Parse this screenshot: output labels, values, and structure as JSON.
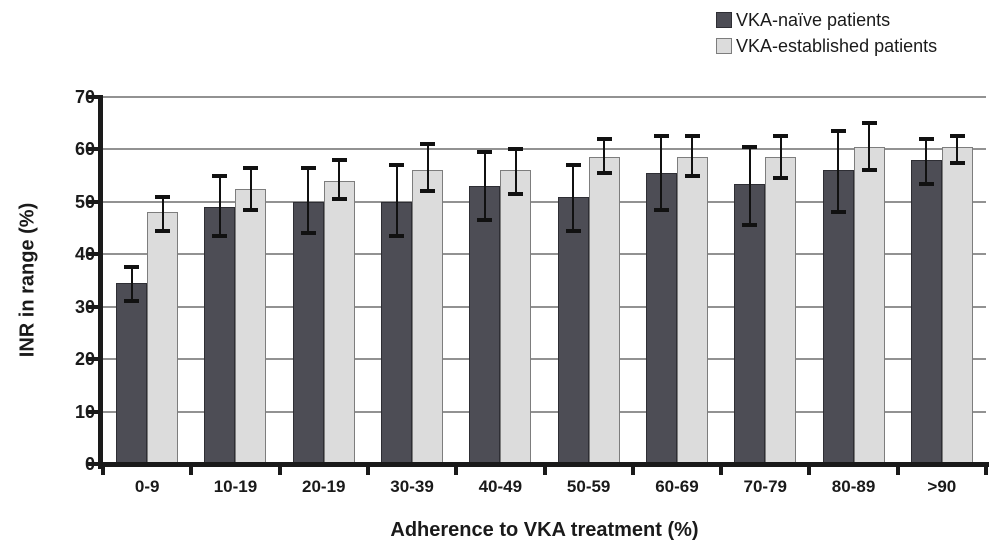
{
  "figure": {
    "background": "#ffffff"
  },
  "colors": {
    "axis": "#1a1a1a",
    "gridline": "#929292",
    "error_bar": "#111111",
    "text": "#1a1a1a"
  },
  "chart_data": {
    "type": "bar",
    "title": "",
    "xlabel": "Adherence to VKA treatment (%)",
    "ylabel": "INR in range (%)",
    "categories": [
      "0-9",
      "10-19",
      "20-19",
      "30-39",
      "40-49",
      "50-59",
      "60-69",
      "70-79",
      "80-89",
      ">90"
    ],
    "series": [
      {
        "name": "VKA-naïve patients",
        "color": "#4d4d55",
        "border_color": "#2e2e34",
        "values": [
          34.5,
          49,
          50,
          50,
          53,
          51,
          55.5,
          53.5,
          56,
          58
        ],
        "error_low": [
          31,
          43.5,
          44,
          43.5,
          46.5,
          44.5,
          48.5,
          45.5,
          48,
          53.5
        ],
        "error_high": [
          37.5,
          55,
          56.5,
          57,
          59.5,
          57,
          62.5,
          60.5,
          63.5,
          62
        ]
      },
      {
        "name": "VKA-established patients",
        "color": "#dcdcdc",
        "border_color": "#7d7d7d",
        "values": [
          48,
          52.5,
          54,
          56,
          56,
          58.5,
          58.5,
          58.5,
          60.5,
          60.5
        ],
        "error_low": [
          44.5,
          48.5,
          50.5,
          52,
          51.5,
          55.5,
          55,
          54.5,
          56,
          57.5
        ],
        "error_high": [
          51,
          56.5,
          58,
          61,
          60,
          62,
          62.5,
          62.5,
          65,
          62.5
        ]
      }
    ],
    "ylim": [
      0,
      70
    ],
    "ytick_step": 10,
    "grid": "horizontal",
    "error_bars": true,
    "legend_position": "top-right"
  }
}
